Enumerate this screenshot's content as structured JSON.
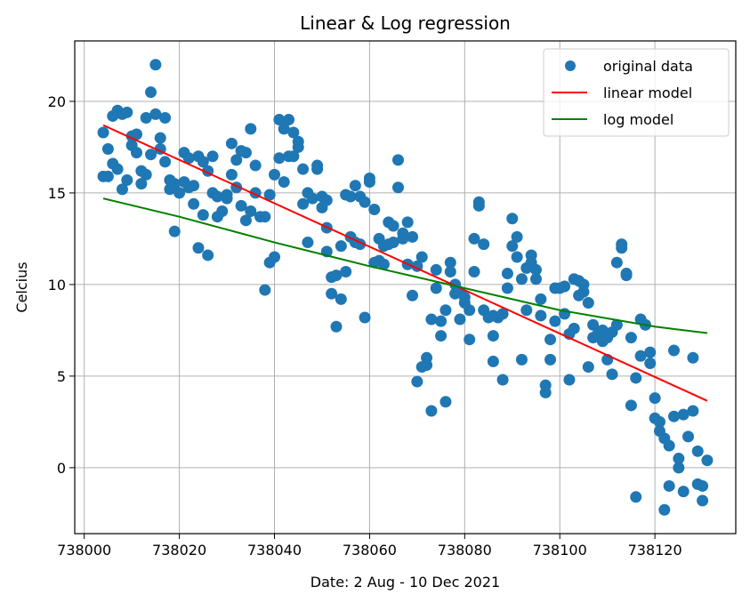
{
  "chart_data": {
    "type": "scatter",
    "title": "Linear & Log regression",
    "xlabel": "Date: 2 Aug - 10 Dec 2021",
    "ylabel": "Celcius",
    "xlim": [
      737998,
      738137
    ],
    "ylim": [
      -3.6,
      23.3
    ],
    "x_ticks": [
      738000,
      738020,
      738040,
      738060,
      738080,
      738100,
      738120
    ],
    "y_ticks": [
      0,
      5,
      10,
      15,
      20
    ],
    "grid": true,
    "legend_position": "top-right",
    "colors": {
      "scatter": "#1f77b4",
      "linear": "#ff0000",
      "log": "#008000",
      "grid": "#b0b0b0"
    },
    "series": [
      {
        "name": "original data",
        "kind": "scatter",
        "points": [
          [
            738004,
            18.3
          ],
          [
            738004,
            15.9
          ],
          [
            738005,
            17.4
          ],
          [
            738005,
            15.9
          ],
          [
            738006,
            19.2
          ],
          [
            738006,
            16.6
          ],
          [
            738007,
            19.5
          ],
          [
            738007,
            16.3
          ],
          [
            738008,
            19.3
          ],
          [
            738008,
            15.2
          ],
          [
            738009,
            19.4
          ],
          [
            738009,
            15.7
          ],
          [
            738010,
            18.1
          ],
          [
            738010,
            17.6
          ],
          [
            738011,
            18.2
          ],
          [
            738011,
            17.2
          ],
          [
            738012,
            16.2
          ],
          [
            738012,
            15.5
          ],
          [
            738013,
            19.1
          ],
          [
            738013,
            16.0
          ],
          [
            738014,
            20.5
          ],
          [
            738014,
            17.1
          ],
          [
            738015,
            22.0
          ],
          [
            738015,
            19.3
          ],
          [
            738016,
            18.0
          ],
          [
            738016,
            17.4
          ],
          [
            738017,
            19.1
          ],
          [
            738017,
            16.7
          ],
          [
            738018,
            15.7
          ],
          [
            738018,
            15.2
          ],
          [
            738019,
            15.5
          ],
          [
            738019,
            12.9
          ],
          [
            738020,
            15.0
          ],
          [
            738021,
            17.2
          ],
          [
            738021,
            15.6
          ],
          [
            738022,
            16.9
          ],
          [
            738022,
            15.3
          ],
          [
            738023,
            15.4
          ],
          [
            738023,
            14.4
          ],
          [
            738024,
            17.0
          ],
          [
            738024,
            12.0
          ],
          [
            738025,
            16.7
          ],
          [
            738025,
            13.8
          ],
          [
            738026,
            16.2
          ],
          [
            738026,
            11.6
          ],
          [
            738027,
            17.0
          ],
          [
            738027,
            15.0
          ],
          [
            738028,
            14.8
          ],
          [
            738028,
            13.7
          ],
          [
            738029,
            14.0
          ],
          [
            738030,
            14.7
          ],
          [
            738030,
            14.9
          ],
          [
            738031,
            17.7
          ],
          [
            738031,
            16.0
          ],
          [
            738032,
            16.8
          ],
          [
            738032,
            15.3
          ],
          [
            738033,
            17.3
          ],
          [
            738033,
            14.3
          ],
          [
            738034,
            17.2
          ],
          [
            738034,
            13.5
          ],
          [
            738035,
            18.5
          ],
          [
            738035,
            14.0
          ],
          [
            738036,
            16.5
          ],
          [
            738036,
            15.0
          ],
          [
            738037,
            13.7
          ],
          [
            738038,
            13.7
          ],
          [
            738038,
            9.7
          ],
          [
            738039,
            14.9
          ],
          [
            738039,
            11.2
          ],
          [
            738040,
            16.0
          ],
          [
            738040,
            11.5
          ],
          [
            738041,
            19.0
          ],
          [
            738041,
            16.9
          ],
          [
            738042,
            18.5
          ],
          [
            738042,
            15.6
          ],
          [
            738043,
            19.0
          ],
          [
            738043,
            17.0
          ],
          [
            738044,
            18.3
          ],
          [
            738044,
            17.0
          ],
          [
            738045,
            17.8
          ],
          [
            738045,
            17.5
          ],
          [
            738046,
            16.3
          ],
          [
            738046,
            14.4
          ],
          [
            738047,
            15.0
          ],
          [
            738047,
            12.3
          ],
          [
            738048,
            14.7
          ],
          [
            738049,
            16.5
          ],
          [
            738049,
            16.3
          ],
          [
            738050,
            14.8
          ],
          [
            738050,
            14.2
          ],
          [
            738051,
            14.6
          ],
          [
            738051,
            13.1
          ],
          [
            738051,
            11.8
          ],
          [
            738052,
            10.4
          ],
          [
            738052,
            9.5
          ],
          [
            738053,
            10.5
          ],
          [
            738053,
            7.7
          ],
          [
            738054,
            12.1
          ],
          [
            738054,
            9.2
          ],
          [
            738055,
            14.9
          ],
          [
            738055,
            10.7
          ],
          [
            738056,
            14.8
          ],
          [
            738056,
            12.6
          ],
          [
            738057,
            15.4
          ],
          [
            738057,
            12.3
          ],
          [
            738058,
            14.8
          ],
          [
            738058,
            12.2
          ],
          [
            738059,
            14.5
          ],
          [
            738059,
            8.2
          ],
          [
            738060,
            15.8
          ],
          [
            738060,
            15.6
          ],
          [
            738061,
            14.1
          ],
          [
            738061,
            11.2
          ],
          [
            738062,
            12.5
          ],
          [
            738062,
            11.3
          ],
          [
            738063,
            11.1
          ],
          [
            738063,
            12.1
          ],
          [
            738064,
            13.4
          ],
          [
            738064,
            12.2
          ],
          [
            738065,
            13.2
          ],
          [
            738065,
            12.3
          ],
          [
            738066,
            16.8
          ],
          [
            738066,
            15.3
          ],
          [
            738067,
            12.8
          ],
          [
            738067,
            12.5
          ],
          [
            738068,
            13.4
          ],
          [
            738068,
            11.1
          ],
          [
            738069,
            12.6
          ],
          [
            738069,
            9.4
          ],
          [
            738070,
            11.0
          ],
          [
            738070,
            4.7
          ],
          [
            738071,
            11.5
          ],
          [
            738071,
            5.5
          ],
          [
            738072,
            6.0
          ],
          [
            738072,
            5.6
          ],
          [
            738073,
            8.1
          ],
          [
            738073,
            3.1
          ],
          [
            738074,
            10.8
          ],
          [
            738074,
            9.8
          ],
          [
            738075,
            8.0
          ],
          [
            738075,
            7.2
          ],
          [
            738076,
            8.6
          ],
          [
            738076,
            3.6
          ],
          [
            738077,
            11.2
          ],
          [
            738077,
            10.7
          ],
          [
            738078,
            9.5
          ],
          [
            738078,
            10.0
          ],
          [
            738079,
            9.6
          ],
          [
            738079,
            8.1
          ],
          [
            738080,
            9.0
          ],
          [
            738080,
            9.3
          ],
          [
            738081,
            8.6
          ],
          [
            738081,
            7.0
          ],
          [
            738082,
            12.5
          ],
          [
            738082,
            10.7
          ],
          [
            738083,
            14.5
          ],
          [
            738083,
            14.3
          ],
          [
            738084,
            12.2
          ],
          [
            738084,
            8.6
          ],
          [
            738085,
            8.2
          ],
          [
            738086,
            8.3
          ],
          [
            738086,
            7.2
          ],
          [
            738086,
            5.8
          ],
          [
            738087,
            8.2
          ],
          [
            738088,
            8.4
          ],
          [
            738088,
            4.8
          ],
          [
            738089,
            10.6
          ],
          [
            738089,
            9.8
          ],
          [
            738090,
            13.6
          ],
          [
            738090,
            12.1
          ],
          [
            738091,
            12.6
          ],
          [
            738091,
            11.5
          ],
          [
            738092,
            10.3
          ],
          [
            738092,
            5.9
          ],
          [
            738093,
            10.9
          ],
          [
            738093,
            8.6
          ],
          [
            738094,
            11.6
          ],
          [
            738094,
            11.2
          ],
          [
            738095,
            10.8
          ],
          [
            738095,
            10.3
          ],
          [
            738096,
            9.2
          ],
          [
            738096,
            8.3
          ],
          [
            738097,
            4.5
          ],
          [
            738097,
            4.1
          ],
          [
            738098,
            7.0
          ],
          [
            738098,
            5.9
          ],
          [
            738099,
            9.8
          ],
          [
            738099,
            8.0
          ],
          [
            738100,
            9.8
          ],
          [
            738101,
            9.9
          ],
          [
            738101,
            8.4
          ],
          [
            738102,
            7.3
          ],
          [
            738102,
            4.8
          ],
          [
            738103,
            10.3
          ],
          [
            738103,
            7.6
          ],
          [
            738104,
            10.2
          ],
          [
            738104,
            9.4
          ],
          [
            738105,
            10.0
          ],
          [
            738105,
            9.6
          ],
          [
            738106,
            9.0
          ],
          [
            738106,
            5.5
          ],
          [
            738107,
            7.8
          ],
          [
            738107,
            7.1
          ],
          [
            738108,
            7.3
          ],
          [
            738109,
            7.5
          ],
          [
            738109,
            6.9
          ],
          [
            738110,
            7.1
          ],
          [
            738110,
            5.9
          ],
          [
            738111,
            7.4
          ],
          [
            738111,
            5.1
          ],
          [
            738112,
            11.2
          ],
          [
            738112,
            7.8
          ],
          [
            738113,
            12.2
          ],
          [
            738113,
            12.0
          ],
          [
            738114,
            10.6
          ],
          [
            738114,
            10.5
          ],
          [
            738115,
            7.1
          ],
          [
            738115,
            3.4
          ],
          [
            738116,
            4.9
          ],
          [
            738116,
            -1.6
          ],
          [
            738117,
            8.1
          ],
          [
            738117,
            6.1
          ],
          [
            738118,
            7.8
          ],
          [
            738119,
            6.3
          ],
          [
            738119,
            5.7
          ],
          [
            738120,
            3.8
          ],
          [
            738120,
            2.7
          ],
          [
            738121,
            2.5
          ],
          [
            738121,
            2.0
          ],
          [
            738122,
            1.6
          ],
          [
            738122,
            -2.3
          ],
          [
            738123,
            1.2
          ],
          [
            738123,
            -1.0
          ],
          [
            738124,
            2.8
          ],
          [
            738124,
            6.4
          ],
          [
            738125,
            0.5
          ],
          [
            738125,
            0.0
          ],
          [
            738126,
            -1.3
          ],
          [
            738126,
            2.9
          ],
          [
            738127,
            1.7
          ],
          [
            738128,
            3.1
          ],
          [
            738128,
            6.0
          ],
          [
            738129,
            0.9
          ],
          [
            738129,
            -0.9
          ],
          [
            738130,
            -1.0
          ],
          [
            738130,
            -1.8
          ],
          [
            738131,
            0.4
          ]
        ]
      },
      {
        "name": "linear model",
        "kind": "line",
        "points": [
          [
            738004,
            18.7
          ],
          [
            738131,
            3.65
          ]
        ]
      },
      {
        "name": "log model",
        "kind": "line",
        "points": [
          [
            738004,
            14.7
          ],
          [
            738020,
            13.7
          ],
          [
            738040,
            12.3
          ],
          [
            738060,
            11.0
          ],
          [
            738080,
            9.8
          ],
          [
            738100,
            8.6
          ],
          [
            738120,
            7.7
          ],
          [
            738131,
            7.35
          ]
        ]
      }
    ]
  }
}
